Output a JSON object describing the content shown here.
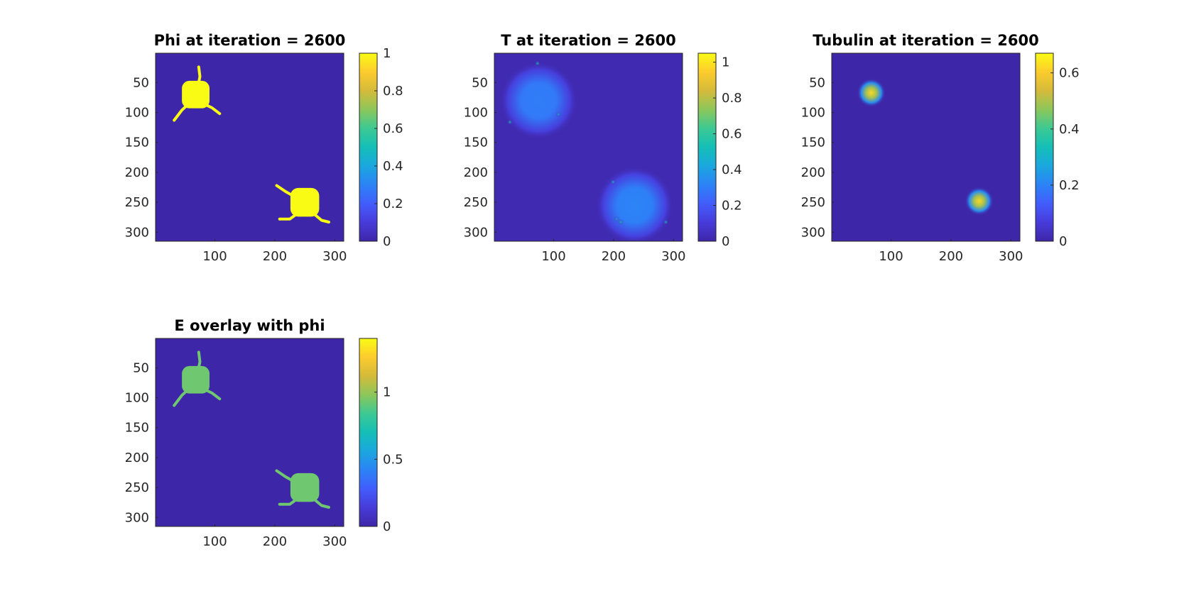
{
  "chart_data": [
    {
      "type": "heatmap",
      "title": "Phi at iteration = 2600",
      "xlabel": "",
      "ylabel": "",
      "xticks": [
        100,
        200,
        300
      ],
      "yticks": [
        50,
        100,
        150,
        200,
        250,
        300
      ],
      "xlim": [
        1,
        315
      ],
      "ylim": [
        1,
        315
      ],
      "clim": [
        0,
        1
      ],
      "colorbar_ticks": [
        "0",
        "0.2",
        "0.4",
        "0.6",
        "0.8",
        "1"
      ],
      "colormap": "parula",
      "background_value": 0,
      "features": [
        {
          "kind": "cell",
          "center": [
            68,
            70
          ],
          "radius": 23,
          "value": 1,
          "branches": [
            [
              [
                72,
                55
              ],
              [
                75,
                40
              ],
              [
                73,
                24
              ]
            ],
            [
              [
                58,
                84
              ],
              [
                45,
                96
              ],
              [
                32,
                113
              ]
            ],
            [
              [
                82,
                86
              ],
              [
                95,
                92
              ],
              [
                108,
                102
              ]
            ]
          ]
        },
        {
          "kind": "cell",
          "center": [
            250,
            250
          ],
          "radius": 24,
          "value": 1,
          "branches": [
            [
              [
                232,
                240
              ],
              [
                218,
                232
              ],
              [
                203,
                222
              ]
            ],
            [
              [
                236,
                270
              ],
              [
                225,
                278
              ],
              [
                208,
                278
              ]
            ],
            [
              [
                266,
                270
              ],
              [
                278,
                280
              ],
              [
                290,
                283
              ]
            ]
          ]
        }
      ]
    },
    {
      "type": "heatmap",
      "title": "T at iteration = 2600",
      "xlabel": "",
      "ylabel": "",
      "xticks": [
        100,
        200,
        300
      ],
      "yticks": [
        50,
        100,
        150,
        200,
        250,
        300
      ],
      "xlim": [
        1,
        315
      ],
      "ylim": [
        1,
        315
      ],
      "clim": [
        0,
        1.05
      ],
      "colorbar_ticks": [
        "0",
        "0.2",
        "0.4",
        "0.6",
        "0.8",
        "1"
      ],
      "colormap": "parula",
      "background_value": 0.02,
      "features": [
        {
          "kind": "diffuse",
          "center": [
            75,
            80
          ],
          "radius": 65,
          "value": 0.3
        },
        {
          "kind": "diffuse",
          "center": [
            235,
            255
          ],
          "radius": 65,
          "value": 0.32
        },
        {
          "kind": "spot",
          "center": [
            73,
            18
          ],
          "value": 0.5
        },
        {
          "kind": "spot",
          "center": [
            27,
            116
          ],
          "value": 0.5
        },
        {
          "kind": "spot",
          "center": [
            108,
            103
          ],
          "value": 0.45
        },
        {
          "kind": "spot",
          "center": [
            199,
            216
          ],
          "value": 0.5
        },
        {
          "kind": "spot",
          "center": [
            205,
            278
          ],
          "value": 0.45
        },
        {
          "kind": "spot",
          "center": [
            212,
            283
          ],
          "value": 0.55
        },
        {
          "kind": "spot",
          "center": [
            287,
            283
          ],
          "value": 0.5
        }
      ]
    },
    {
      "type": "heatmap",
      "title": "Tubulin at iteration = 2600",
      "xlabel": "",
      "ylabel": "",
      "xticks": [
        100,
        200,
        300
      ],
      "yticks": [
        50,
        100,
        150,
        200,
        250,
        300
      ],
      "xlim": [
        1,
        315
      ],
      "ylim": [
        1,
        315
      ],
      "clim": [
        0,
        0.67
      ],
      "colorbar_ticks": [
        "0",
        "0.2",
        "0.4",
        "0.6"
      ],
      "colormap": "parula",
      "background_value": 0,
      "features": [
        {
          "kind": "blob",
          "center": [
            67,
            67
          ],
          "radius": 24,
          "value": 0.62
        },
        {
          "kind": "blob",
          "center": [
            247,
            248
          ],
          "radius": 24,
          "value": 0.62
        }
      ]
    },
    {
      "type": "heatmap",
      "title": "E overlay with phi",
      "xlabel": "",
      "ylabel": "",
      "xticks": [
        100,
        200,
        300
      ],
      "yticks": [
        50,
        100,
        150,
        200,
        250,
        300
      ],
      "xlim": [
        1,
        315
      ],
      "ylim": [
        1,
        315
      ],
      "clim": [
        0,
        1.4
      ],
      "colorbar_ticks": [
        "0",
        "0.5",
        "1"
      ],
      "colormap": "parula",
      "background_value": 0,
      "features": [
        {
          "kind": "cell",
          "center": [
            68,
            70
          ],
          "radius": 23,
          "value": 0.93,
          "branches": [
            [
              [
                72,
                55
              ],
              [
                75,
                40
              ],
              [
                73,
                24
              ]
            ],
            [
              [
                58,
                84
              ],
              [
                45,
                96
              ],
              [
                32,
                113
              ]
            ],
            [
              [
                82,
                86
              ],
              [
                95,
                92
              ],
              [
                108,
                102
              ]
            ]
          ]
        },
        {
          "kind": "cell",
          "center": [
            250,
            250
          ],
          "radius": 24,
          "value": 0.93,
          "branches": [
            [
              [
                232,
                240
              ],
              [
                218,
                232
              ],
              [
                203,
                222
              ]
            ],
            [
              [
                236,
                270
              ],
              [
                225,
                278
              ],
              [
                208,
                278
              ]
            ],
            [
              [
                266,
                270
              ],
              [
                278,
                280
              ],
              [
                290,
                283
              ]
            ]
          ]
        }
      ]
    }
  ]
}
